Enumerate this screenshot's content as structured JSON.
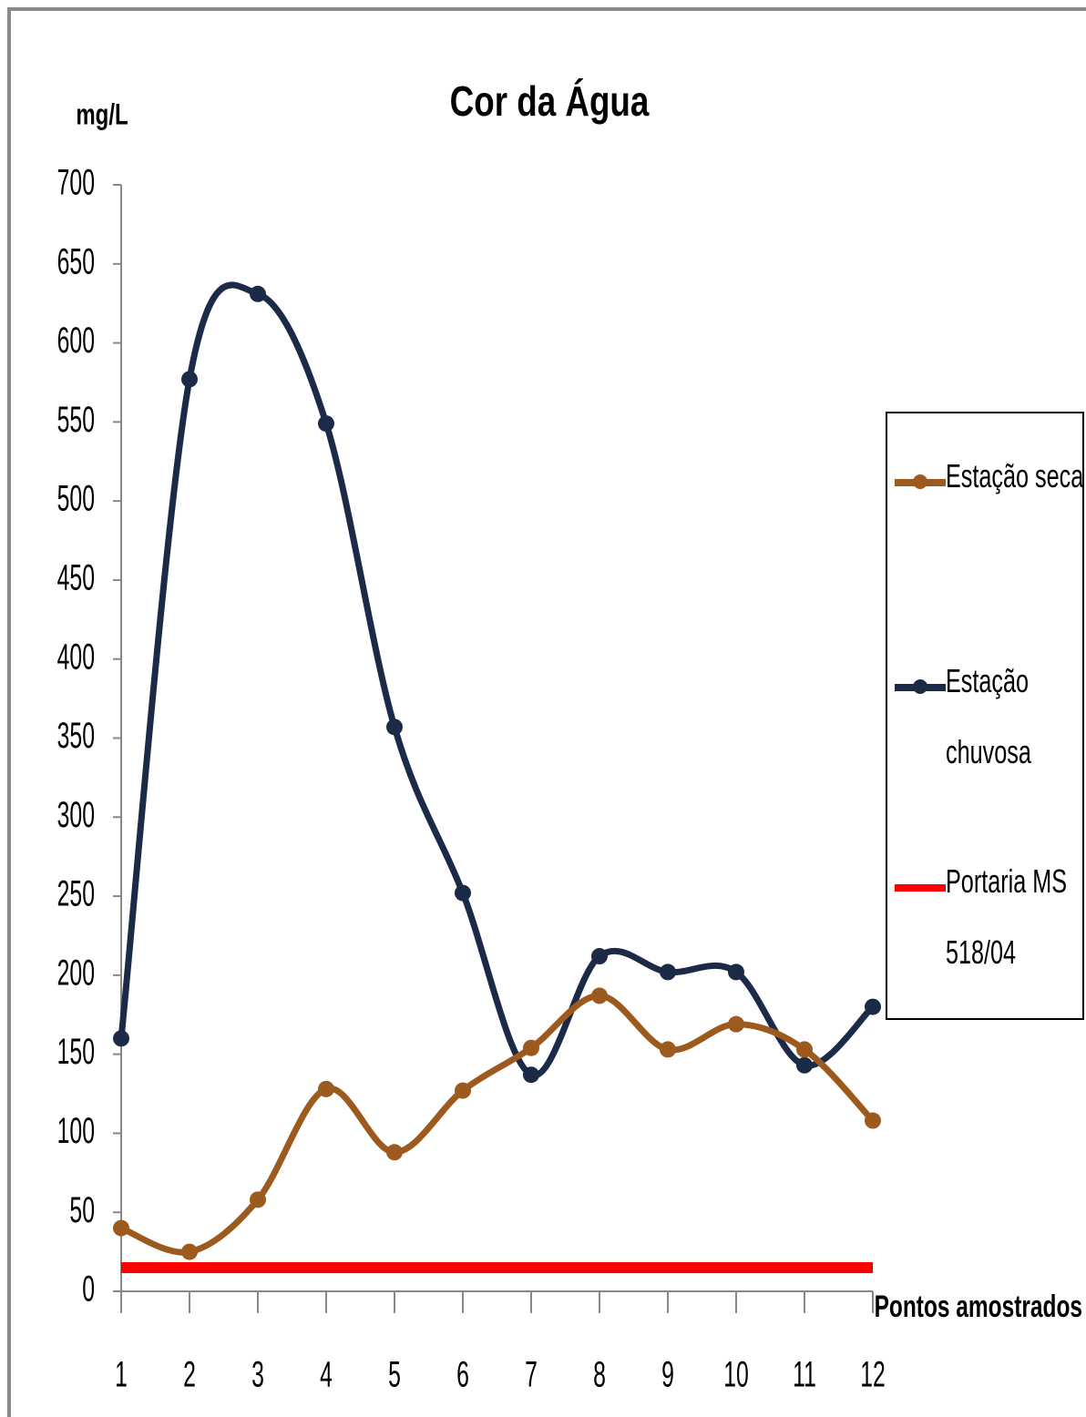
{
  "chart_data": {
    "type": "line",
    "title": "Cor da Água",
    "y_label": "mg/L",
    "x_label": "Pontos amostrados",
    "x": [
      1,
      2,
      3,
      4,
      5,
      6,
      7,
      8,
      9,
      10,
      11,
      12
    ],
    "xlim": [
      1,
      12
    ],
    "xticks": [
      1,
      2,
      3,
      4,
      5,
      6,
      7,
      8,
      9,
      10,
      11,
      12
    ],
    "ylim": [
      0,
      700
    ],
    "yticks": [
      0,
      50,
      100,
      150,
      200,
      250,
      300,
      350,
      400,
      450,
      500,
      550,
      600,
      650,
      700
    ],
    "legend": "right",
    "series": [
      {
        "name": "Estação seca",
        "color": "#9c5a1e",
        "markers": true,
        "smooth": true,
        "values": [
          40,
          25,
          58,
          128,
          88,
          127,
          154,
          187,
          153,
          169,
          153,
          108
        ]
      },
      {
        "name": "Estação chuvosa",
        "color": "#1b2a47",
        "markers": true,
        "smooth": true,
        "values": [
          160,
          577,
          631,
          549,
          357,
          252,
          137,
          212,
          202,
          202,
          143,
          180
        ]
      },
      {
        "name": "Portaria MS 518/04",
        "color": "#ff0000",
        "markers": false,
        "smooth": false,
        "values": [
          15,
          15,
          15,
          15,
          15,
          15,
          15,
          15,
          15,
          15,
          15,
          15
        ]
      }
    ]
  }
}
